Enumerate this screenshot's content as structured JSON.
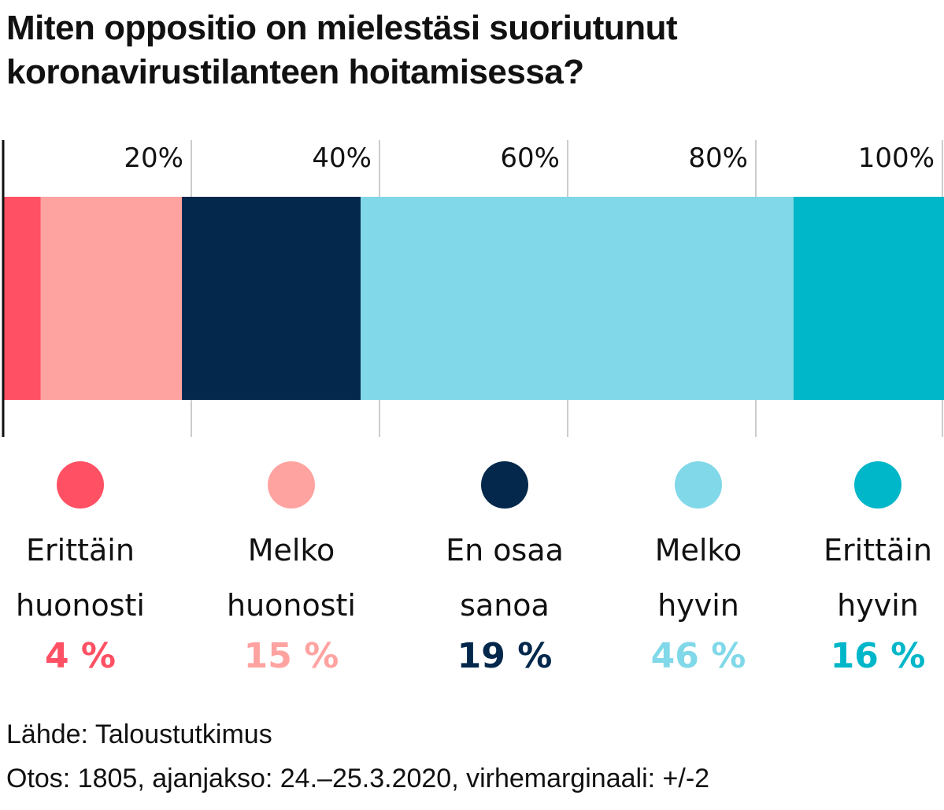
{
  "chart_data": {
    "type": "bar",
    "orientation": "horizontal-stacked",
    "title": "Miten oppositio on mielestäsi suoriutunut koronavirustilanteen hoitamisessa?",
    "xlim": [
      0,
      100
    ],
    "ticks": [
      "20%",
      "40%",
      "60%",
      "80%",
      "100%"
    ],
    "tick_values": [
      20,
      40,
      60,
      80,
      100
    ],
    "grid": true,
    "legend_position": "bottom",
    "series": [
      {
        "name": "Erittäin\nhuonosti",
        "value": 4,
        "value_label": "4 %",
        "color": "#FF5064"
      },
      {
        "name": "Melko\nhuonosti",
        "value": 15,
        "value_label": "15 %",
        "color": "#FFA3A1"
      },
      {
        "name": "En osaa\nsanoa",
        "value": 19,
        "value_label": "19 %",
        "color": "#03284C"
      },
      {
        "name": "Melko\nhyvin",
        "value": 46,
        "value_label": "46 %",
        "color": "#80D8E8"
      },
      {
        "name": "Erittäin\nhyvin",
        "value": 16,
        "value_label": "16 %",
        "color": "#00B6C9"
      }
    ]
  },
  "footer": {
    "source": "Lähde: Taloustutkimus",
    "sample": "Otos: 1805, ajanjakso: 24.–25.3.2020, virhemarginaali: +/-2"
  }
}
